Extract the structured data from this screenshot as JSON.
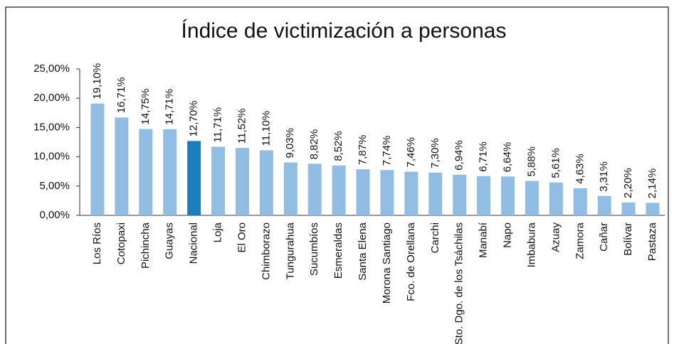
{
  "chart_data": {
    "type": "bar",
    "title": "Índice de victimización a personas",
    "categories": [
      "Los Ríos",
      "Cotopaxi",
      "Pichincha",
      "Guayas",
      "Nacional",
      "Loja",
      "El Oro",
      "Chimborazo",
      "Tungurahua",
      "Sucumbíos",
      "Esmeraldas",
      "Santa Elena",
      "Morona Santiago",
      "Fco. de Orellana",
      "Carchi",
      "Sto. Dgo. de los Tsáchilas",
      "Manabí",
      "Napo",
      "Imbabura",
      "Azuay",
      "Zamora",
      "Cañar",
      "Bolívar",
      "Pastaza"
    ],
    "values": [
      19.1,
      16.71,
      14.75,
      14.71,
      12.7,
      11.71,
      11.52,
      11.1,
      9.03,
      8.82,
      8.52,
      7.87,
      7.74,
      7.46,
      7.3,
      6.94,
      6.71,
      6.64,
      5.88,
      5.61,
      4.63,
      3.31,
      2.2,
      2.14
    ],
    "value_labels": [
      "19,10%",
      "16,71%",
      "14,75%",
      "14,71%",
      "12,70%",
      "11,71%",
      "11,52%",
      "11,10%",
      "9,03%",
      "8,82%",
      "8,52%",
      "7,87%",
      "7,74%",
      "7,46%",
      "7,30%",
      "6,94%",
      "6,71%",
      "6,64%",
      "5,88%",
      "5,61%",
      "4,63%",
      "3,31%",
      "2,20%",
      "2,14%"
    ],
    "colors": [
      "#92bde2",
      "#92bde2",
      "#92bde2",
      "#92bde2",
      "#1b7db9",
      "#92bde2",
      "#92bde2",
      "#92bde2",
      "#92bde2",
      "#92bde2",
      "#92bde2",
      "#92bde2",
      "#92bde2",
      "#92bde2",
      "#92bde2",
      "#92bde2",
      "#92bde2",
      "#92bde2",
      "#92bde2",
      "#92bde2",
      "#92bde2",
      "#92bde2",
      "#92bde2",
      "#92bde2"
    ],
    "ylim": [
      0,
      25
    ],
    "yticks": [
      {
        "value": 0,
        "label": "0,00%"
      },
      {
        "value": 5,
        "label": "5,00%"
      },
      {
        "value": 10,
        "label": "10,00%"
      },
      {
        "value": 15,
        "label": "15,00%"
      },
      {
        "value": 20,
        "label": "20,00%"
      },
      {
        "value": 25,
        "label": "25,00%"
      }
    ],
    "grid": false
  }
}
